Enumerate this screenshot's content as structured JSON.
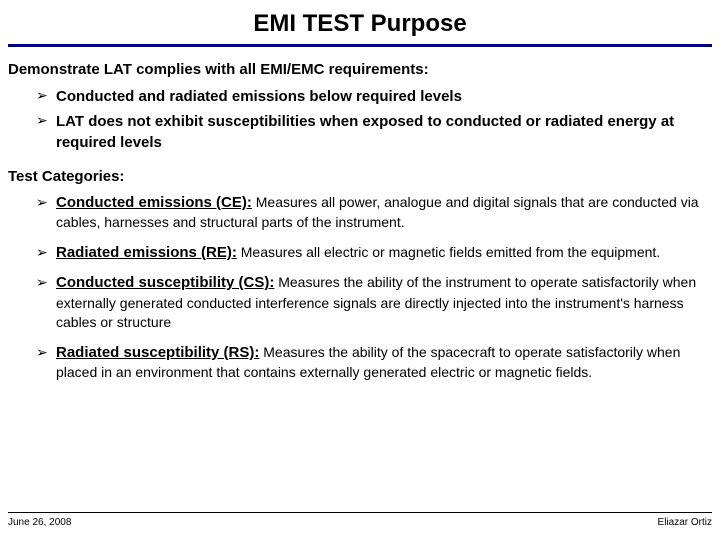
{
  "title": "EMI TEST Purpose",
  "colors": {
    "title_rule": "#000099",
    "text": "#000000",
    "background": "#ffffff"
  },
  "section1": {
    "heading": "Demonstrate LAT complies with all EMI/EMC requirements:",
    "bullets": [
      "Conducted and radiated emissions below required levels",
      "LAT does not exhibit susceptibilities when exposed to conducted or radiated energy at required levels"
    ]
  },
  "section2": {
    "heading": "Test Categories:",
    "items": [
      {
        "term": "Conducted emissions (CE):",
        "desc": " Measures all power, analogue and digital signals that are conducted via cables, harnesses and structural parts of the instrument."
      },
      {
        "term": "Radiated emissions (RE):",
        "desc": " Measures all electric or magnetic fields emitted from the equipment."
      },
      {
        "term": "Conducted susceptibility (CS):",
        "desc": " Measures the ability of the instrument to operate satisfactorily when externally generated conducted interference signals are directly injected into the instrument's harness cables or structure"
      },
      {
        "term": "Radiated susceptibility (RS):",
        "desc": " Measures the ability of the spacecraft to operate satisfactorily when placed in  an environment that contains externally generated electric or magnetic fields."
      }
    ]
  },
  "footer": {
    "date": "June 26, 2008",
    "author": "Eliazar Ortiz"
  }
}
